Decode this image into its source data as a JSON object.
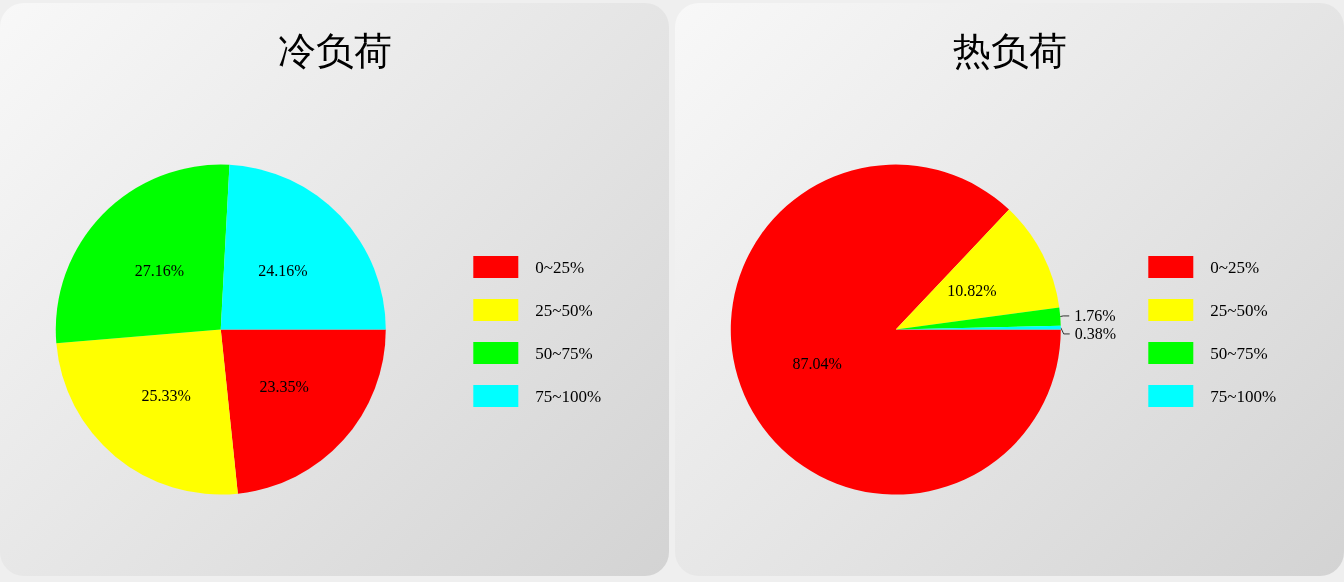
{
  "chart_data": [
    {
      "type": "pie",
      "title": "冷负荷",
      "categories": [
        "0~25%",
        "25~50%",
        "50~75%",
        "75~100%"
      ],
      "values": [
        23.35,
        25.33,
        27.16,
        24.16
      ],
      "colors": [
        "#ff0000",
        "#ffff00",
        "#00ff00",
        "#00ffff"
      ],
      "value_labels": [
        "23.35%",
        "25.33%",
        "27.16%",
        "24.16%"
      ],
      "legend": "right"
    },
    {
      "type": "pie",
      "title": "热负荷",
      "categories": [
        "0~25%",
        "25~50%",
        "50~75%",
        "75~100%"
      ],
      "values": [
        87.04,
        10.82,
        1.76,
        0.38
      ],
      "colors": [
        "#ff0000",
        "#ffff00",
        "#00ff00",
        "#00ffff"
      ],
      "value_labels": [
        "87.04%",
        "10.82%",
        "1.76%",
        "0.38%"
      ],
      "legend": "right"
    }
  ]
}
